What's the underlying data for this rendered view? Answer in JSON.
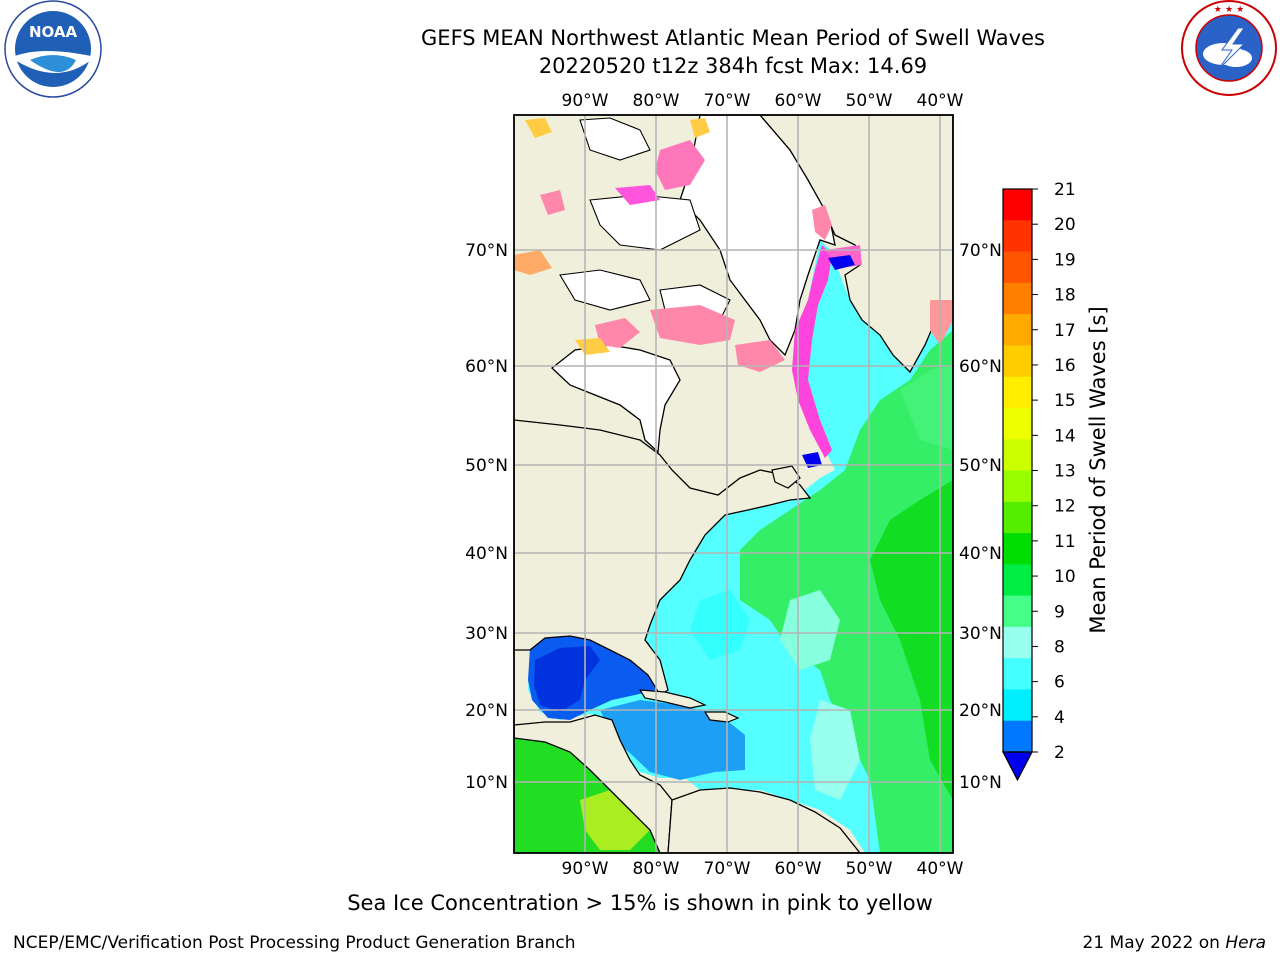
{
  "header": {
    "title_line1": "GEFS MEAN Northwest Atlantic Mean Period of Swell Waves",
    "title_line2": "20220520 t12z 384h fcst   Max: 14.69"
  },
  "logos": {
    "left": {
      "text": "NOAA",
      "ring_text": "NATIONAL OCEANIC AND ATMOSPHERIC ADMINISTRATION · U.S. DEPARTMENT OF COMMERCE"
    },
    "right": {
      "ring_text": "NATIONAL WEATHER SERVICE"
    }
  },
  "map": {
    "lon_labels": [
      "90°W",
      "80°W",
      "70°W",
      "60°W",
      "50°W",
      "40°W"
    ],
    "lon_values": [
      -90,
      -80,
      -70,
      -60,
      -50,
      -40
    ],
    "lat_labels": [
      "70°N",
      "60°N",
      "50°N",
      "40°N",
      "30°N",
      "20°N",
      "10°N"
    ],
    "lat_values": [
      70,
      60,
      50,
      40,
      30,
      20,
      10
    ],
    "colors": {
      "land": "#efefdb",
      "ice_land": "#ffffff",
      "grid": "#b4b4b4"
    }
  },
  "colorbar": {
    "label": "Mean Period of Swell Waves [s]",
    "ticks": [
      "21",
      "20",
      "19",
      "18",
      "17",
      "16",
      "15",
      "14",
      "13",
      "12",
      "11",
      "10",
      "9",
      "8",
      "6",
      "4",
      "2"
    ],
    "colors": [
      "#ff0000",
      "#ff3300",
      "#ff5500",
      "#ff7f00",
      "#ffaa00",
      "#ffcc00",
      "#ffee00",
      "#eeff00",
      "#ccff00",
      "#99ff00",
      "#55ee00",
      "#00dd00",
      "#00ee44",
      "#44ff88",
      "#99ffee",
      "#44ffff",
      "#00eeff",
      "#0077ff"
    ],
    "under_color": "#0000ee"
  },
  "caption": "Sea Ice Concentration > 15% is shown in pink to yellow",
  "footer": {
    "left": "NCEP/EMC/Verification Post Processing Product Generation Branch",
    "right_date": "21 May 2022 on ",
    "right_host": "Hera"
  }
}
